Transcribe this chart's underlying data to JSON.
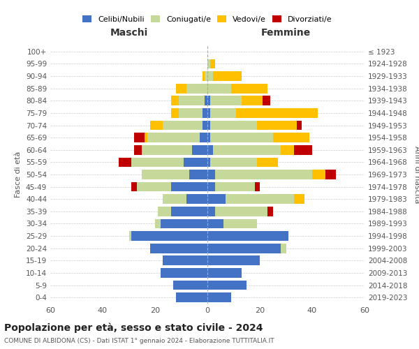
{
  "age_groups": [
    "0-4",
    "5-9",
    "10-14",
    "15-19",
    "20-24",
    "25-29",
    "30-34",
    "35-39",
    "40-44",
    "45-49",
    "50-54",
    "55-59",
    "60-64",
    "65-69",
    "70-74",
    "75-79",
    "80-84",
    "85-89",
    "90-94",
    "95-99",
    "100+"
  ],
  "birth_years": [
    "2019-2023",
    "2014-2018",
    "2009-2013",
    "2004-2008",
    "1999-2003",
    "1994-1998",
    "1989-1993",
    "1984-1988",
    "1979-1983",
    "1974-1978",
    "1969-1973",
    "1964-1968",
    "1959-1963",
    "1954-1958",
    "1949-1953",
    "1944-1948",
    "1939-1943",
    "1934-1938",
    "1929-1933",
    "1924-1928",
    "≤ 1923"
  ],
  "maschi": {
    "celibi": [
      12,
      13,
      18,
      17,
      22,
      29,
      18,
      14,
      8,
      14,
      7,
      9,
      6,
      3,
      2,
      2,
      1,
      0,
      0,
      0,
      0
    ],
    "coniugati": [
      0,
      0,
      0,
      0,
      0,
      1,
      2,
      5,
      9,
      13,
      18,
      20,
      19,
      20,
      15,
      9,
      10,
      8,
      1,
      0,
      0
    ],
    "vedovi": [
      0,
      0,
      0,
      0,
      0,
      0,
      0,
      0,
      0,
      0,
      0,
      0,
      0,
      1,
      5,
      3,
      3,
      4,
      1,
      0,
      0
    ],
    "divorziati": [
      0,
      0,
      0,
      0,
      0,
      0,
      0,
      0,
      0,
      2,
      0,
      5,
      3,
      4,
      0,
      0,
      0,
      0,
      0,
      0,
      0
    ]
  },
  "femmine": {
    "celibi": [
      9,
      15,
      13,
      20,
      28,
      31,
      6,
      3,
      7,
      3,
      3,
      1,
      2,
      1,
      1,
      1,
      1,
      0,
      0,
      0,
      0
    ],
    "coniugati": [
      0,
      0,
      0,
      0,
      2,
      0,
      13,
      20,
      26,
      15,
      37,
      18,
      26,
      24,
      18,
      10,
      12,
      9,
      2,
      1,
      0
    ],
    "vedovi": [
      0,
      0,
      0,
      0,
      0,
      0,
      0,
      0,
      4,
      0,
      5,
      8,
      5,
      14,
      15,
      31,
      8,
      14,
      11,
      2,
      0
    ],
    "divorziati": [
      0,
      0,
      0,
      0,
      0,
      0,
      0,
      2,
      0,
      2,
      4,
      0,
      7,
      0,
      2,
      0,
      3,
      0,
      0,
      0,
      0
    ]
  },
  "colors": {
    "celibi": "#4472c4",
    "coniugati": "#c6d99a",
    "vedovi": "#ffc000",
    "divorziati": "#c00000"
  },
  "title": "Popolazione per età, sesso e stato civile - 2024",
  "subtitle": "COMUNE DI ALBIDONA (CS) - Dati ISTAT 1° gennaio 2024 - Elaborazione TUTTITALIA.IT",
  "xlabel_left": "Maschi",
  "xlabel_right": "Femmine",
  "ylabel_left": "Fasce di età",
  "ylabel_right": "Anni di nascita",
  "xlim": 60,
  "bg_color": "#ffffff",
  "grid_color": "#cccccc"
}
